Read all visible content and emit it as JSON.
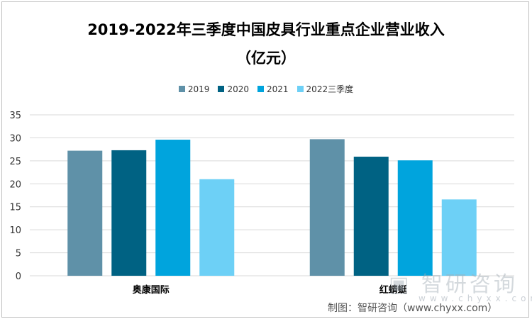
{
  "chart_data": {
    "type": "bar",
    "title_line1": "2019-2022年三季度中国皮具行业重点企业营业收入",
    "title_line2": "（亿元）",
    "categories": [
      "奥康国际",
      "红蜻蜓"
    ],
    "series": [
      {
        "name": "2019",
        "values": [
          27.2,
          29.7
        ],
        "color": "#5f91a8"
      },
      {
        "name": "2020",
        "values": [
          27.3,
          25.9
        ],
        "color": "#006283"
      },
      {
        "name": "2021",
        "values": [
          29.6,
          25.1
        ],
        "color": "#00a4dd"
      },
      {
        "name": "2022三季度",
        "values": [
          21.0,
          16.6
        ],
        "color": "#6dd0f6"
      }
    ],
    "ylim": [
      0,
      35
    ],
    "yticks": [
      0,
      5,
      10,
      15,
      20,
      25,
      30,
      35
    ],
    "grid": true,
    "legend": "top"
  },
  "credit": "制图：智研咨询（www.chyxx.com）",
  "watermark": "智研咨询 www.chyxx.com"
}
